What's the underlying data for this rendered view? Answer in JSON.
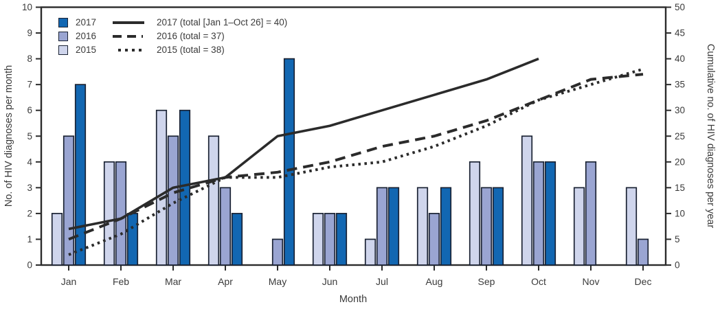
{
  "chart_data": {
    "type": "bar+line",
    "months": [
      "Jan",
      "Feb",
      "Mar",
      "Apr",
      "May",
      "Jun",
      "Jul",
      "Aug",
      "Sep",
      "Oct",
      "Nov",
      "Dec"
    ],
    "x_axis": {
      "label": "Month"
    },
    "left_axis": {
      "label": "No. of HIV diagnoses per month",
      "min": 0,
      "max": 10,
      "step": 1
    },
    "right_axis": {
      "label": "Cumulative no. of HIV diagnoses per year",
      "min": 0,
      "max": 50,
      "step": 5
    },
    "bar_series": [
      {
        "name": "2017",
        "color": "#1267b2",
        "values": [
          7,
          2,
          6,
          2,
          8,
          2,
          3,
          3,
          3,
          4,
          null,
          null
        ]
      },
      {
        "name": "2016",
        "color": "#9aa5d2",
        "values": [
          5,
          4,
          5,
          3,
          1,
          2,
          3,
          2,
          3,
          4,
          4,
          1
        ]
      },
      {
        "name": "2015",
        "color": "#cfd5ec",
        "values": [
          2,
          4,
          6,
          5,
          0,
          2,
          1,
          3,
          4,
          5,
          3,
          3
        ]
      }
    ],
    "line_series": [
      {
        "name": "2017 (total [Jan 1–Oct 26] = 40)",
        "style": "solid",
        "values": [
          7,
          9,
          15,
          17,
          25,
          27,
          30,
          33,
          36,
          40
        ]
      },
      {
        "name": "2016 (total = 37)",
        "style": "dashed",
        "values": [
          5,
          9,
          14,
          17,
          18,
          20,
          23,
          25,
          28,
          32,
          36,
          37
        ]
      },
      {
        "name": "2015 (total = 38)",
        "style": "dotted",
        "values": [
          2,
          6,
          12,
          17,
          17,
          19,
          20,
          23,
          27,
          32,
          35,
          38
        ]
      }
    ],
    "bar_outline_color": "#1a2233",
    "line_color": "#2b2b2b",
    "axis_color": "#2b2b2b",
    "text_color": "#3a3a3a",
    "legend_position": "top-left",
    "grid": "off",
    "lines_plotted_on": "right_axis"
  }
}
